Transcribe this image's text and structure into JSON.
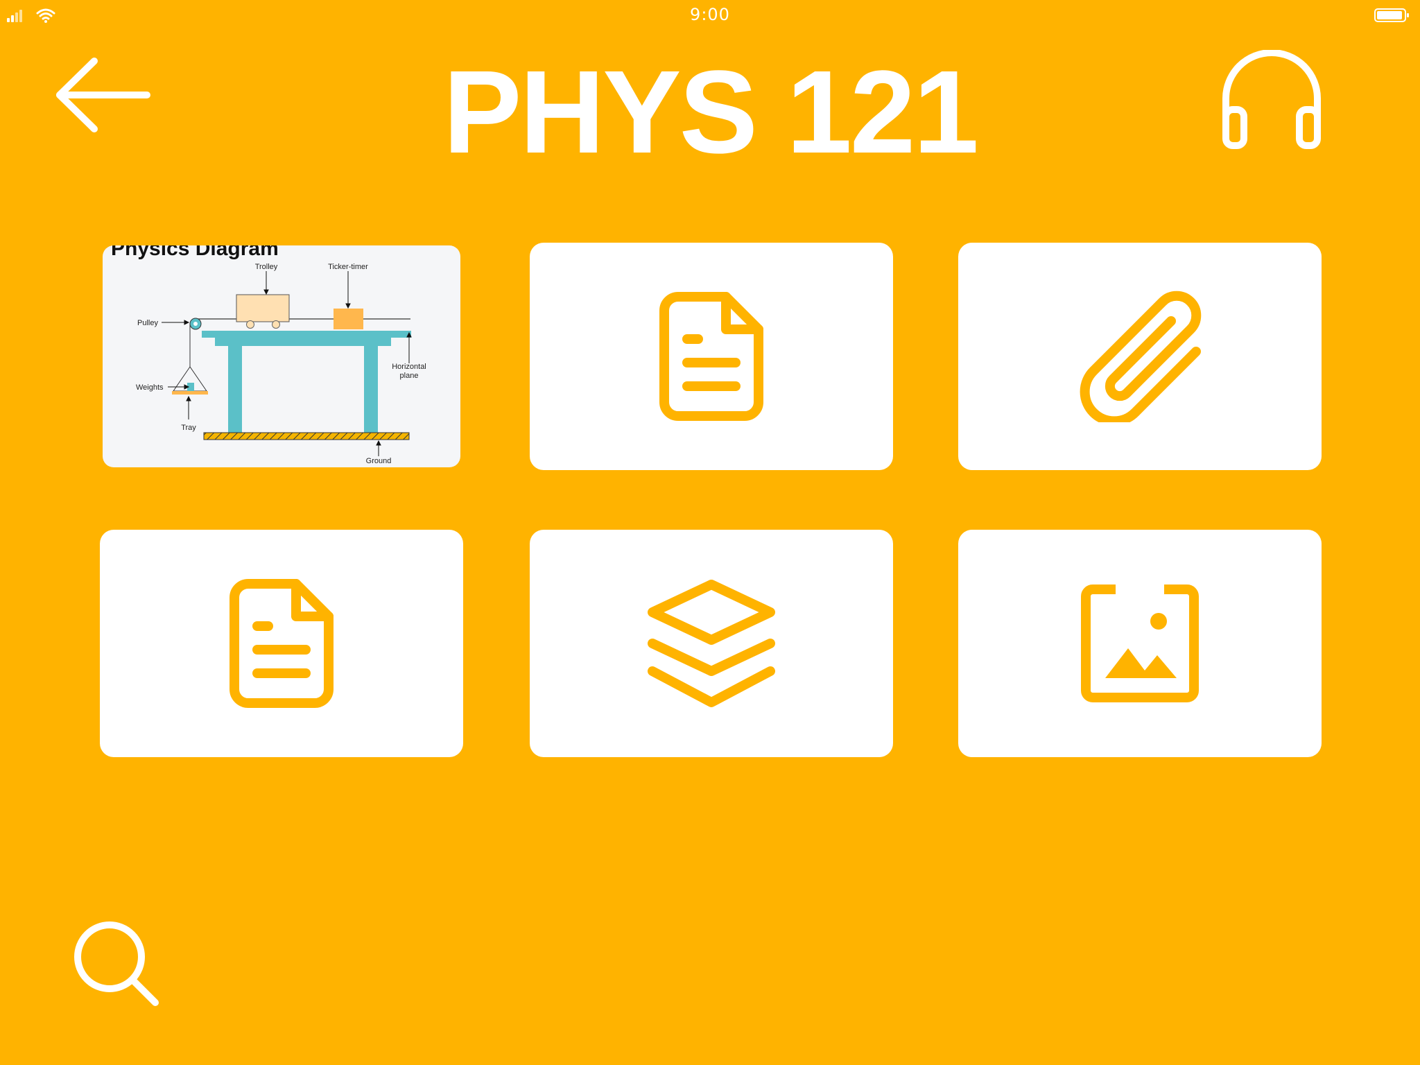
{
  "status": {
    "time": "9:00"
  },
  "header": {
    "title": "PHYS 121"
  },
  "diagram": {
    "title": "Physics Diagram",
    "labels": {
      "trolley": "Trolley",
      "ticker": "Ticker-timer",
      "pulley": "Pulley",
      "weights": "Weights",
      "tray": "Tray",
      "horizontal1": "Horizontal",
      "horizontal2": "plane",
      "ground": "Ground"
    }
  },
  "tiles": [
    {
      "icon": "document-icon"
    },
    {
      "icon": "paperclip-icon"
    },
    {
      "icon": "document-icon"
    },
    {
      "icon": "layers-icon"
    },
    {
      "icon": "image-icon"
    }
  ],
  "colors": {
    "background": "#FFB300",
    "card": "#FFFFFF",
    "accent": "#FFB300",
    "diagram_table": "#5BC0C8"
  }
}
